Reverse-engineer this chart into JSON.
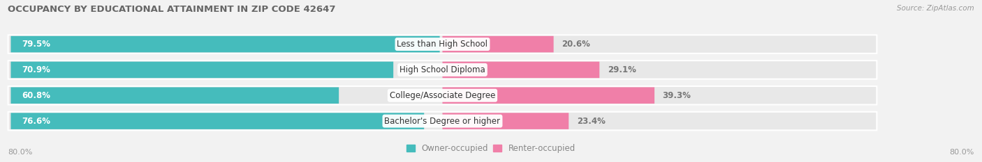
{
  "title": "OCCUPANCY BY EDUCATIONAL ATTAINMENT IN ZIP CODE 42647",
  "source": "Source: ZipAtlas.com",
  "categories": [
    "Less than High School",
    "High School Diploma",
    "College/Associate Degree",
    "Bachelor's Degree or higher"
  ],
  "owner_values": [
    79.5,
    70.9,
    60.8,
    76.6
  ],
  "renter_values": [
    20.6,
    29.1,
    39.3,
    23.4
  ],
  "owner_color": "#45BCBC",
  "renter_color": "#F07FA8",
  "row_bg_color": "#e8e8e8",
  "bg_color": "#f2f2f2",
  "max_val": 80.0,
  "owner_label": "Owner-occupied",
  "renter_label": "Renter-occupied",
  "x_tick_left": "80.0%",
  "x_tick_right": "80.0%"
}
